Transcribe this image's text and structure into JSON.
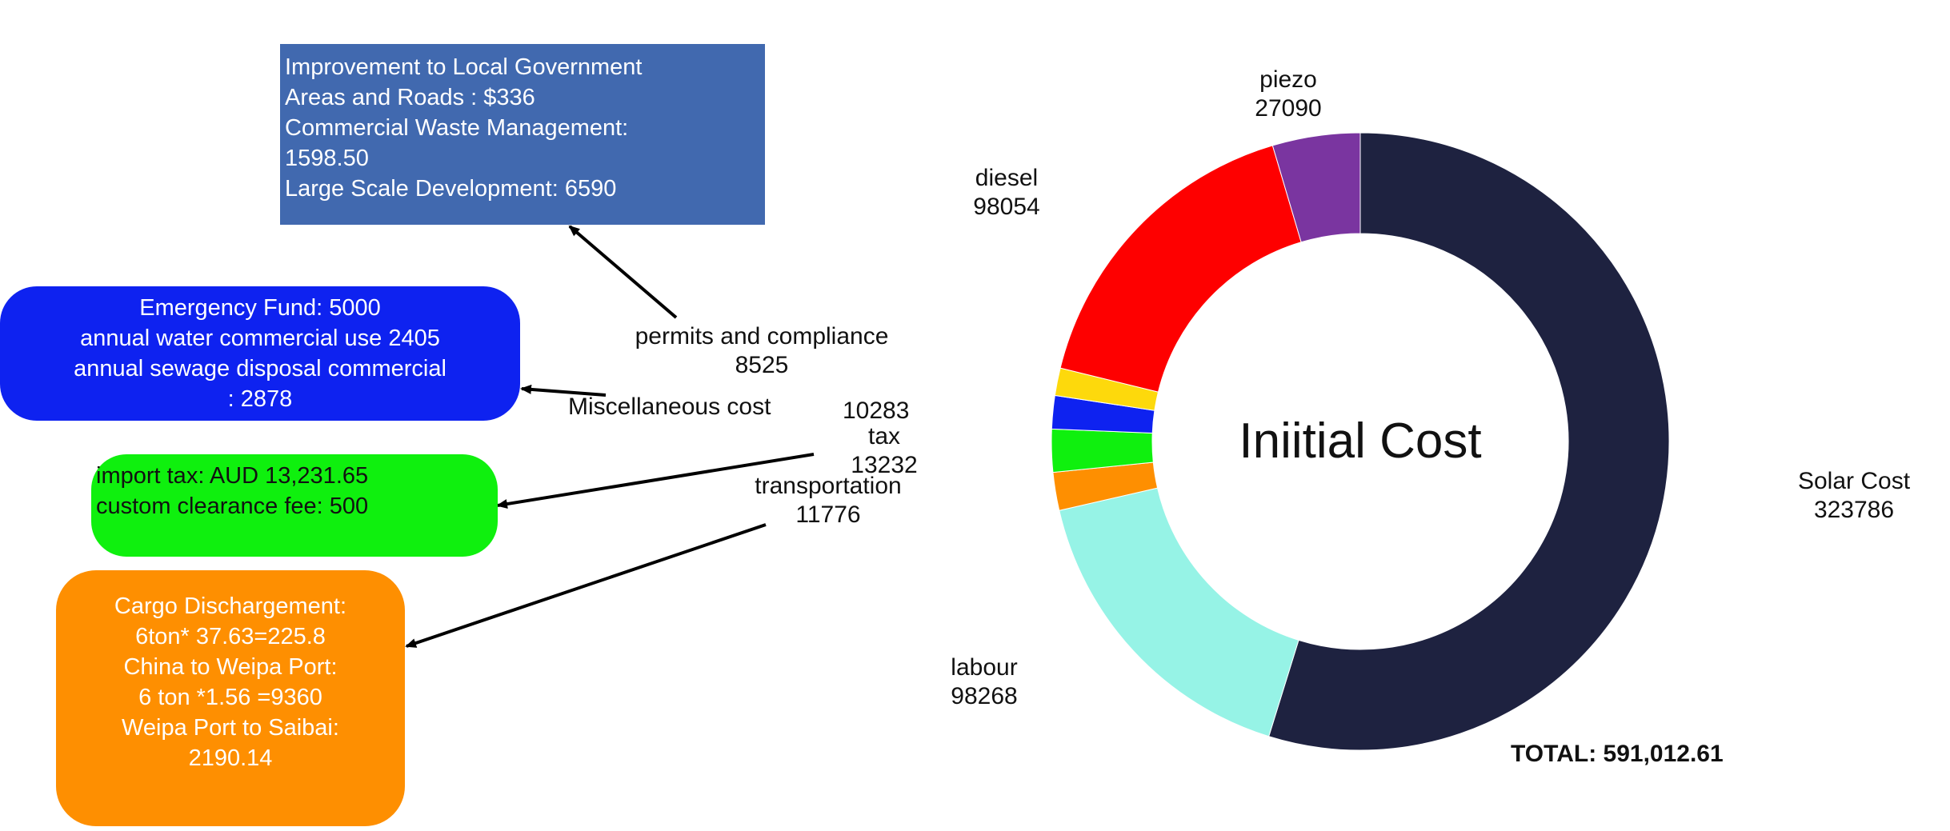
{
  "chart_data": {
    "type": "pie",
    "donut": true,
    "center_label": "Iniitial Cost",
    "total_label": "TOTAL: 591,012.61",
    "slices": [
      {
        "label": "Solar Cost",
        "value": 323786,
        "color": "#1e2240"
      },
      {
        "label": "labour",
        "value": 98268,
        "color": "#96f3e6"
      },
      {
        "label": "transportation",
        "value": 11776,
        "color": "#fe8f01"
      },
      {
        "label": "tax",
        "value": 13232,
        "color": "#0ff00e"
      },
      {
        "label": "Miscellaneous cost",
        "value": 10283,
        "color": "#0e22f0"
      },
      {
        "label": "permits and compliance",
        "value": 8525,
        "color": "#fdd90c"
      },
      {
        "label": "diesel",
        "value": 98054,
        "color": "#fe0000"
      },
      {
        "label": "piezo",
        "value": 27090,
        "color": "#7a35a0"
      }
    ]
  },
  "annotations": {
    "permits": [
      "Improvement to Local Government",
      "Areas and Roads : $336",
      "Commercial Waste Management:",
      "1598.50",
      "Large Scale Development: 6590"
    ],
    "misc": [
      "Emergency Fund: 5000",
      "annual water commercial use 2405",
      "annual sewage disposal commercial",
      ": 2878"
    ],
    "tax": [
      "import tax: AUD 13,231.65",
      "custom clearance fee: 500"
    ],
    "transport": [
      "Cargo Dischargement:",
      "6ton* 37.63=225.8",
      "China to Weipa Port:",
      "6 ton *1.56 =9360",
      "Weipa Port to Saibai:",
      "2190.14"
    ]
  },
  "colors": {
    "permits_box": "#4169af",
    "misc_box": "#0e22f0",
    "tax_box": "#0ff00e",
    "transport_box": "#fe8f01"
  }
}
